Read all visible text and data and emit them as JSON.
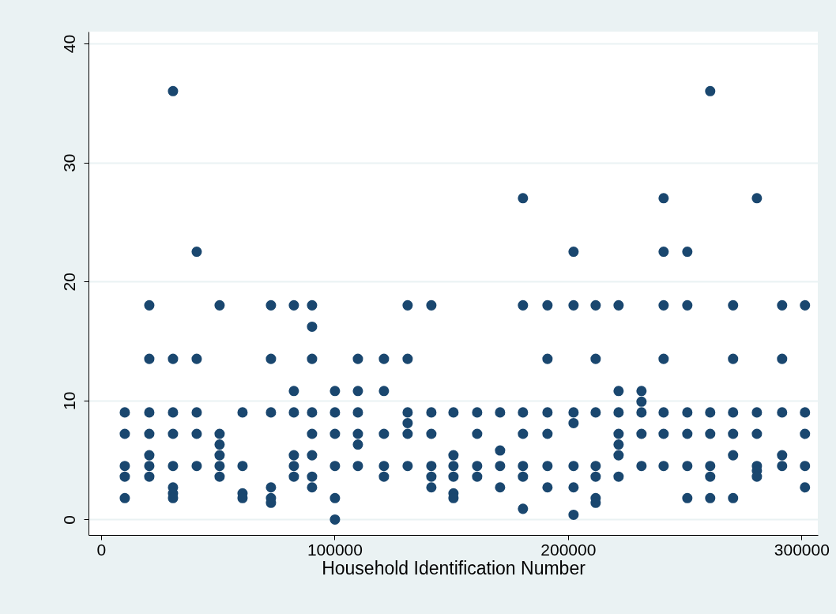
{
  "chart_data": {
    "type": "scatter",
    "xlabel": "Household Identification Number",
    "xlim": [
      -5400,
      307000
    ],
    "ylim": [
      -1.3,
      41
    ],
    "xticks": [
      0,
      100000,
      200000,
      300000
    ],
    "yticks": [
      0,
      10,
      20,
      30,
      40
    ],
    "grid": "y",
    "marker": "circle",
    "legend": false,
    "series": [
      {
        "color": "#1a476f",
        "x": [
          10150,
          10150,
          10150,
          10150,
          10150,
          20640,
          20640,
          20640,
          20640,
          20640,
          20640,
          20640,
          30800,
          30800,
          30800,
          30800,
          30800,
          30800,
          30800,
          30800,
          40950,
          40950,
          40950,
          40950,
          40950,
          50760,
          50760,
          50760,
          50760,
          50760,
          50760,
          60580,
          60580,
          60580,
          60580,
          72760,
          72760,
          72760,
          72760,
          72760,
          72760,
          82570,
          82570,
          82570,
          82570,
          82570,
          82570,
          90360,
          90360,
          90360,
          90360,
          90360,
          90360,
          90360,
          90360,
          100170,
          100170,
          100170,
          100170,
          100170,
          100170,
          110000,
          110000,
          110000,
          110000,
          110000,
          110000,
          121150,
          121150,
          121150,
          121150,
          121150,
          131300,
          131300,
          131300,
          131300,
          131300,
          131300,
          141460,
          141460,
          141460,
          141460,
          141460,
          141460,
          150930,
          150930,
          150930,
          150930,
          150930,
          150930,
          161080,
          161080,
          161080,
          161080,
          170900,
          170900,
          170900,
          170900,
          180700,
          180700,
          180700,
          180700,
          180700,
          180700,
          180700,
          191200,
          191200,
          191200,
          191200,
          191200,
          191200,
          202370,
          202370,
          202370,
          202370,
          202370,
          202370,
          202370,
          211840,
          211840,
          211840,
          211840,
          211840,
          211840,
          211840,
          221660,
          221660,
          221660,
          221660,
          221660,
          221660,
          221660,
          231470,
          231470,
          231470,
          231470,
          231470,
          240950,
          240950,
          240950,
          240950,
          240950,
          240950,
          240950,
          251100,
          251100,
          251100,
          251100,
          251100,
          251100,
          260900,
          260900,
          260900,
          260900,
          260900,
          260900,
          270700,
          270700,
          270700,
          270700,
          270700,
          270700,
          280900,
          280900,
          280900,
          280900,
          280900,
          280900,
          291700,
          291700,
          291700,
          291700,
          291700,
          301500,
          301500,
          301500,
          301500,
          301500
        ],
        "values": [
          9,
          7.2,
          4.5,
          3.6,
          1.8,
          18,
          13.5,
          9,
          7.2,
          5.4,
          4.5,
          3.6,
          36,
          13.5,
          9,
          7.2,
          4.5,
          2.7,
          2.2,
          1.8,
          22.5,
          13.5,
          9,
          7.2,
          4.5,
          18,
          7.2,
          6.3,
          5.4,
          4.5,
          3.6,
          9,
          4.5,
          2.2,
          1.8,
          18,
          13.5,
          9,
          2.7,
          1.8,
          1.4,
          18,
          10.8,
          9,
          5.4,
          4.5,
          3.6,
          18,
          16.2,
          13.5,
          9,
          7.2,
          5.4,
          3.6,
          2.7,
          10.8,
          9,
          7.2,
          4.5,
          1.8,
          0,
          13.5,
          10.8,
          9,
          7.2,
          6.3,
          4.5,
          13.5,
          10.8,
          7.2,
          4.5,
          3.6,
          18,
          13.5,
          9,
          8.1,
          7.2,
          4.5,
          18,
          9,
          7.2,
          4.5,
          3.6,
          2.7,
          9,
          5.4,
          4.5,
          3.6,
          2.2,
          1.8,
          9,
          7.2,
          4.5,
          3.6,
          9,
          5.8,
          4.5,
          2.7,
          27,
          18,
          9,
          7.2,
          4.5,
          3.6,
          0.9,
          18,
          13.5,
          9,
          7.2,
          4.5,
          2.7,
          22.5,
          18,
          9,
          8.1,
          4.5,
          2.7,
          0.4,
          18,
          13.5,
          9,
          4.5,
          3.6,
          1.8,
          1.4,
          18,
          10.8,
          9,
          7.2,
          6.3,
          5.4,
          3.6,
          10.8,
          9.9,
          9,
          7.2,
          4.5,
          27,
          22.5,
          18,
          13.5,
          9,
          7.2,
          4.5,
          22.5,
          18,
          9,
          7.2,
          4.5,
          1.8,
          36,
          9,
          7.2,
          4.5,
          3.6,
          1.8,
          18,
          13.5,
          9,
          7.2,
          5.4,
          1.8,
          27,
          9,
          7.2,
          4.5,
          4.1,
          3.6,
          18,
          13.5,
          9,
          5.4,
          4.5,
          18,
          9,
          7.2,
          4.5,
          2.7
        ]
      }
    ]
  }
}
